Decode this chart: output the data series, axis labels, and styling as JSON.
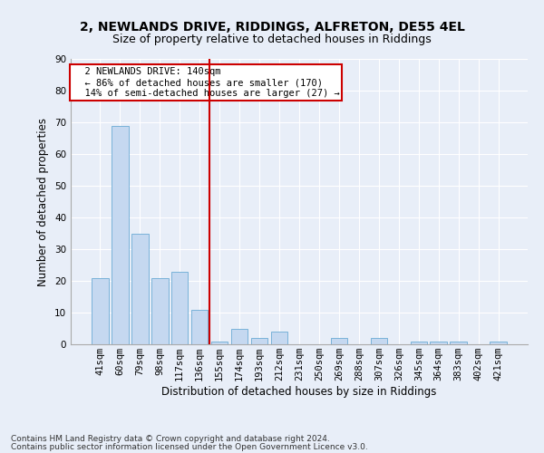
{
  "title1": "2, NEWLANDS DRIVE, RIDDINGS, ALFRETON, DE55 4EL",
  "title2": "Size of property relative to detached houses in Riddings",
  "xlabel": "Distribution of detached houses by size in Riddings",
  "ylabel": "Number of detached properties",
  "categories": [
    "41sqm",
    "60sqm",
    "79sqm",
    "98sqm",
    "117sqm",
    "136sqm",
    "155sqm",
    "174sqm",
    "193sqm",
    "212sqm",
    "231sqm",
    "250sqm",
    "269sqm",
    "288sqm",
    "307sqm",
    "326sqm",
    "345sqm",
    "364sqm",
    "383sqm",
    "402sqm",
    "421sqm"
  ],
  "values": [
    21,
    69,
    35,
    21,
    23,
    11,
    1,
    5,
    2,
    4,
    0,
    0,
    2,
    0,
    2,
    0,
    1,
    1,
    1,
    0,
    1
  ],
  "bar_color": "#c5d8f0",
  "bar_edge_color": "#6aaad4",
  "vline_color": "#cc0000",
  "vline_x": 5.5,
  "annotation_text": "  2 NEWLANDS DRIVE: 140sqm\n  ← 86% of detached houses are smaller (170)\n  14% of semi-detached houses are larger (27) →",
  "annotation_box_color": "#ffffff",
  "annotation_box_edge": "#cc0000",
  "ylim": [
    0,
    90
  ],
  "yticks": [
    0,
    10,
    20,
    30,
    40,
    50,
    60,
    70,
    80,
    90
  ],
  "footer1": "Contains HM Land Registry data © Crown copyright and database right 2024.",
  "footer2": "Contains public sector information licensed under the Open Government Licence v3.0.",
  "background_color": "#e8eef8",
  "plot_bg_color": "#e8eef8",
  "grid_color": "#ffffff",
  "title_fontsize": 10,
  "subtitle_fontsize": 9,
  "axis_label_fontsize": 8.5,
  "tick_fontsize": 7.5,
  "footer_fontsize": 6.5
}
